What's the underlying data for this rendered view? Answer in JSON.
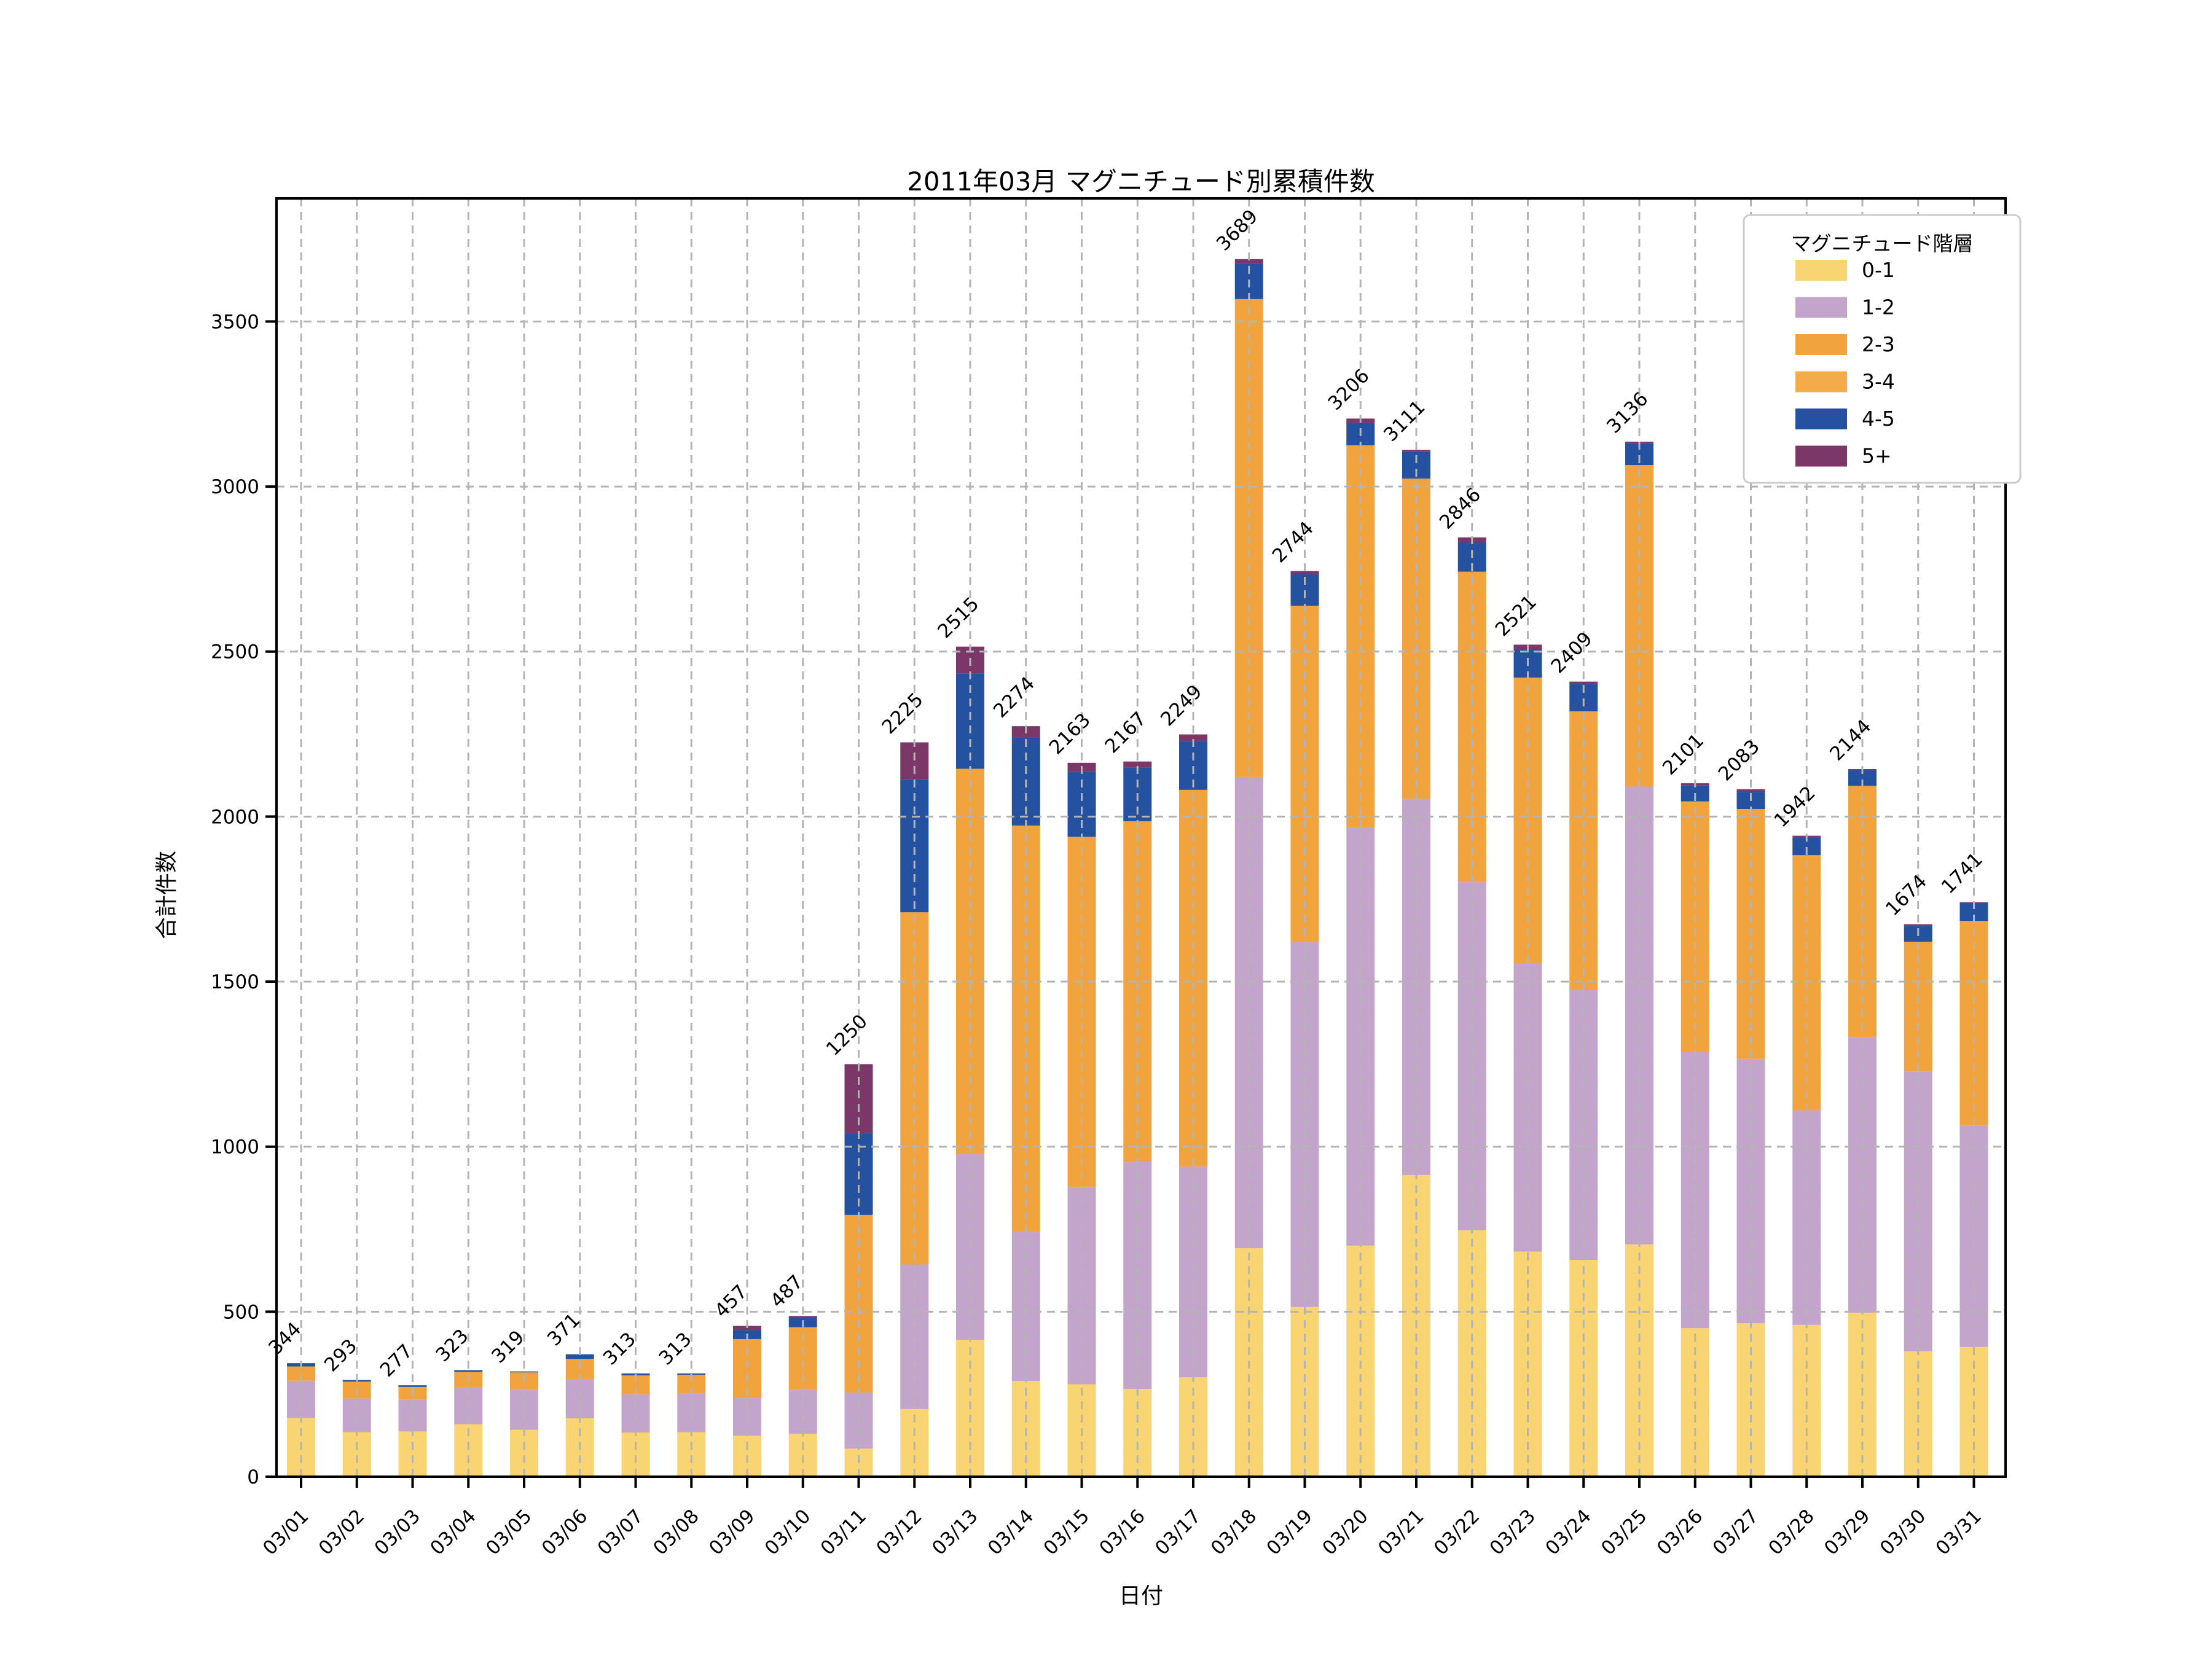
{
  "chart_data": {
    "type": "bar",
    "stacked": true,
    "title": "2011年03月 マグニチュード別累積件数",
    "xlabel": "日付",
    "ylabel": "合計件数",
    "legend_title": "マグニチュード階層",
    "legend_position": "upper right",
    "grid": true,
    "grid_style": "dashed",
    "ylim": [
      0,
      3873
    ],
    "yticks": [
      0,
      500,
      1000,
      1500,
      2000,
      2500,
      3000,
      3500
    ],
    "bar_total_labels_rotation_deg": 45,
    "x_tick_rotation_deg": 45,
    "categories": [
      "03/01",
      "03/02",
      "03/03",
      "03/04",
      "03/05",
      "03/06",
      "03/07",
      "03/08",
      "03/09",
      "03/10",
      "03/11",
      "03/12",
      "03/13",
      "03/14",
      "03/15",
      "03/16",
      "03/17",
      "03/18",
      "03/19",
      "03/20",
      "03/21",
      "03/22",
      "03/23",
      "03/24",
      "03/25",
      "03/26",
      "03/27",
      "03/28",
      "03/29",
      "03/30",
      "03/31"
    ],
    "totals": [
      344,
      293,
      277,
      323,
      319,
      371,
      313,
      313,
      457,
      487,
      1250,
      2225,
      2515,
      2274,
      2163,
      2167,
      2249,
      3689,
      2744,
      3206,
      3111,
      2846,
      2521,
      2409,
      3136,
      2101,
      2083,
      1942,
      2144,
      1674,
      1741
    ],
    "series": [
      {
        "label": "0-1",
        "color": "#F8D572",
        "values": [
          178,
          135,
          137,
          159,
          142,
          177,
          134,
          135,
          124,
          130,
          85,
          205,
          415,
          290,
          280,
          266,
          301,
          692,
          514,
          700,
          914,
          747,
          682,
          657,
          704,
          450,
          465,
          460,
          497,
          380,
          393
        ]
      },
      {
        "label": "1-2",
        "color": "#C3A5CB",
        "values": [
          113,
          102,
          96,
          112,
          121,
          119,
          116,
          117,
          114,
          133,
          170,
          438,
          562,
          451,
          598,
          688,
          639,
          1428,
          1106,
          1268,
          1140,
          1054,
          873,
          817,
          1387,
          836,
          801,
          650,
          835,
          847,
          671
        ]
      },
      {
        "label": "2-3",
        "color": "#F1A43D",
        "values": [
          43,
          51,
          39,
          47,
          53,
          61,
          57,
          57,
          179,
          190,
          538,
          1067,
          1168,
          1232,
          1061,
          1032,
          1141,
          1448,
          1019,
          1157,
          970,
          941,
          866,
          845,
          974,
          760,
          757,
          773,
          761,
          394,
          620
        ]
      },
      {
        "label": "3-4",
        "color": "#F4AB4A",
        "values": [
          0,
          0,
          0,
          0,
          0,
          0,
          0,
          0,
          0,
          0,
          0,
          0,
          0,
          0,
          0,
          0,
          0,
          0,
          0,
          0,
          0,
          0,
          0,
          0,
          0,
          0,
          0,
          0,
          0,
          0,
          0
        ]
      },
      {
        "label": "4-5",
        "color": "#2452A0",
        "values": [
          10,
          5,
          5,
          5,
          3,
          14,
          6,
          4,
          27,
          29,
          248,
          403,
          289,
          266,
          197,
          162,
          148,
          109,
          95,
          68,
          81,
          89,
          85,
          83,
          67,
          49,
          52,
          55,
          48,
          48,
          55
        ]
      },
      {
        "label": "5+",
        "color": "#7B3767",
        "values": [
          0,
          0,
          0,
          0,
          0,
          0,
          0,
          0,
          13,
          5,
          209,
          112,
          81,
          35,
          27,
          19,
          20,
          12,
          10,
          13,
          6,
          15,
          15,
          7,
          4,
          6,
          8,
          4,
          3,
          5,
          2
        ]
      }
    ],
    "note": "The 2-3 and 3-4 legend categories are drawn in visually identical orange in the source image; the internal boundary is not distinguishable, so the combined orange segment of each bar is reported under the 2-3 series and 3-4 is listed as 0."
  },
  "style_colors": {
    "grid": "#B4B4B4",
    "spine": "#000000",
    "text": "#000000",
    "legend_border": "#CCCCCC",
    "background": "#FFFFFF"
  }
}
